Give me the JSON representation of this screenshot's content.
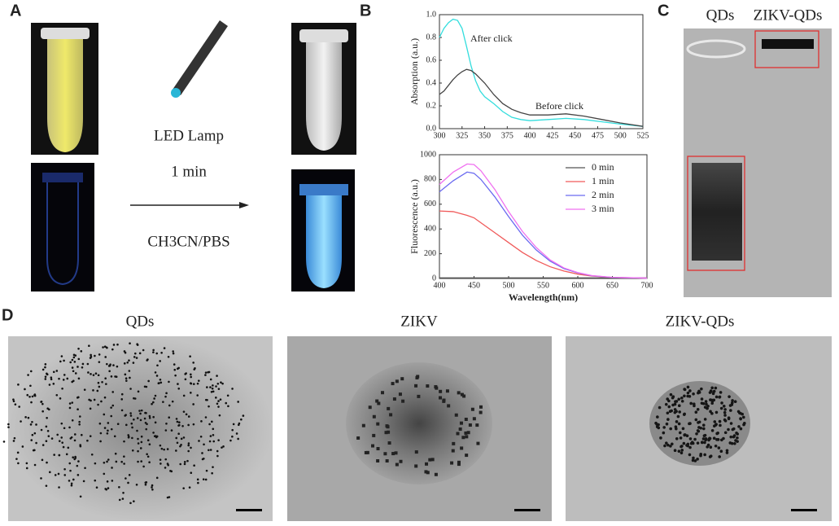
{
  "panel_labels": [
    "A",
    "B",
    "C",
    "D"
  ],
  "panel_a": {
    "lamp": "LED Lamp",
    "time": "1 min",
    "solvent": "CH3CN/PBS"
  },
  "panel_c": {
    "lanes": [
      "QDs",
      "ZIKV-QDs"
    ]
  },
  "panel_d": {
    "titles": [
      "QDs",
      "ZIKV",
      "ZIKV-QDs"
    ]
  },
  "chart_data": [
    {
      "type": "line",
      "ylabel": "Absorption (a.u.)",
      "x": [
        300,
        305,
        310,
        315,
        320,
        325,
        330,
        335,
        340,
        345,
        350,
        360,
        370,
        380,
        390,
        400,
        420,
        440,
        460,
        480,
        500,
        525
      ],
      "series": [
        {
          "name": "After click",
          "color": "#33dddd",
          "values": [
            0.8,
            0.88,
            0.93,
            0.96,
            0.95,
            0.88,
            0.72,
            0.55,
            0.42,
            0.33,
            0.28,
            0.22,
            0.15,
            0.1,
            0.08,
            0.07,
            0.08,
            0.09,
            0.08,
            0.06,
            0.04,
            0.02
          ]
        },
        {
          "name": "Before click",
          "color": "#444444",
          "values": [
            0.3,
            0.33,
            0.38,
            0.43,
            0.47,
            0.5,
            0.52,
            0.51,
            0.48,
            0.44,
            0.4,
            0.3,
            0.22,
            0.17,
            0.14,
            0.12,
            0.12,
            0.13,
            0.11,
            0.08,
            0.05,
            0.02
          ]
        }
      ],
      "xlim": [
        300,
        525
      ],
      "xticks": [
        300,
        325,
        350,
        375,
        400,
        425,
        450,
        475,
        500,
        525
      ],
      "ylim": [
        0,
        1.0
      ],
      "yticks": [
        {
          "value": 0,
          "label": "0.0"
        },
        0.2,
        0.4,
        0.6,
        0.8,
        {
          "value": 1,
          "label": "1.0"
        }
      ]
    },
    {
      "type": "line",
      "xlabel": "Wavelength(nm)",
      "ylabel": "Fluorescence (a.u.)",
      "legend": "upper right",
      "x": [
        400,
        420,
        440,
        450,
        460,
        480,
        500,
        520,
        540,
        560,
        580,
        600,
        620,
        650,
        700
      ],
      "series": [
        {
          "name": "0 min",
          "color": "#555555",
          "values": [
            5,
            5,
            5,
            5,
            5,
            5,
            5,
            5,
            5,
            5,
            5,
            5,
            5,
            5,
            5
          ]
        },
        {
          "name": "1 min",
          "color": "#f05a5a",
          "values": [
            545,
            540,
            510,
            490,
            450,
            370,
            290,
            210,
            145,
            95,
            60,
            35,
            20,
            8,
            3
          ]
        },
        {
          "name": "2 min",
          "color": "#6a6af0",
          "values": [
            700,
            790,
            860,
            850,
            800,
            660,
            500,
            350,
            230,
            140,
            80,
            45,
            22,
            8,
            3
          ]
        },
        {
          "name": "3 min",
          "color": "#f070f0",
          "values": [
            760,
            860,
            925,
            920,
            870,
            720,
            540,
            380,
            250,
            150,
            85,
            48,
            24,
            9,
            3
          ]
        }
      ],
      "xlim": [
        400,
        700
      ],
      "xticks": [
        400,
        450,
        500,
        550,
        600,
        650,
        700
      ],
      "ylim": [
        0,
        1000
      ],
      "yticks": [
        0,
        200,
        400,
        600,
        800,
        1000
      ]
    }
  ]
}
